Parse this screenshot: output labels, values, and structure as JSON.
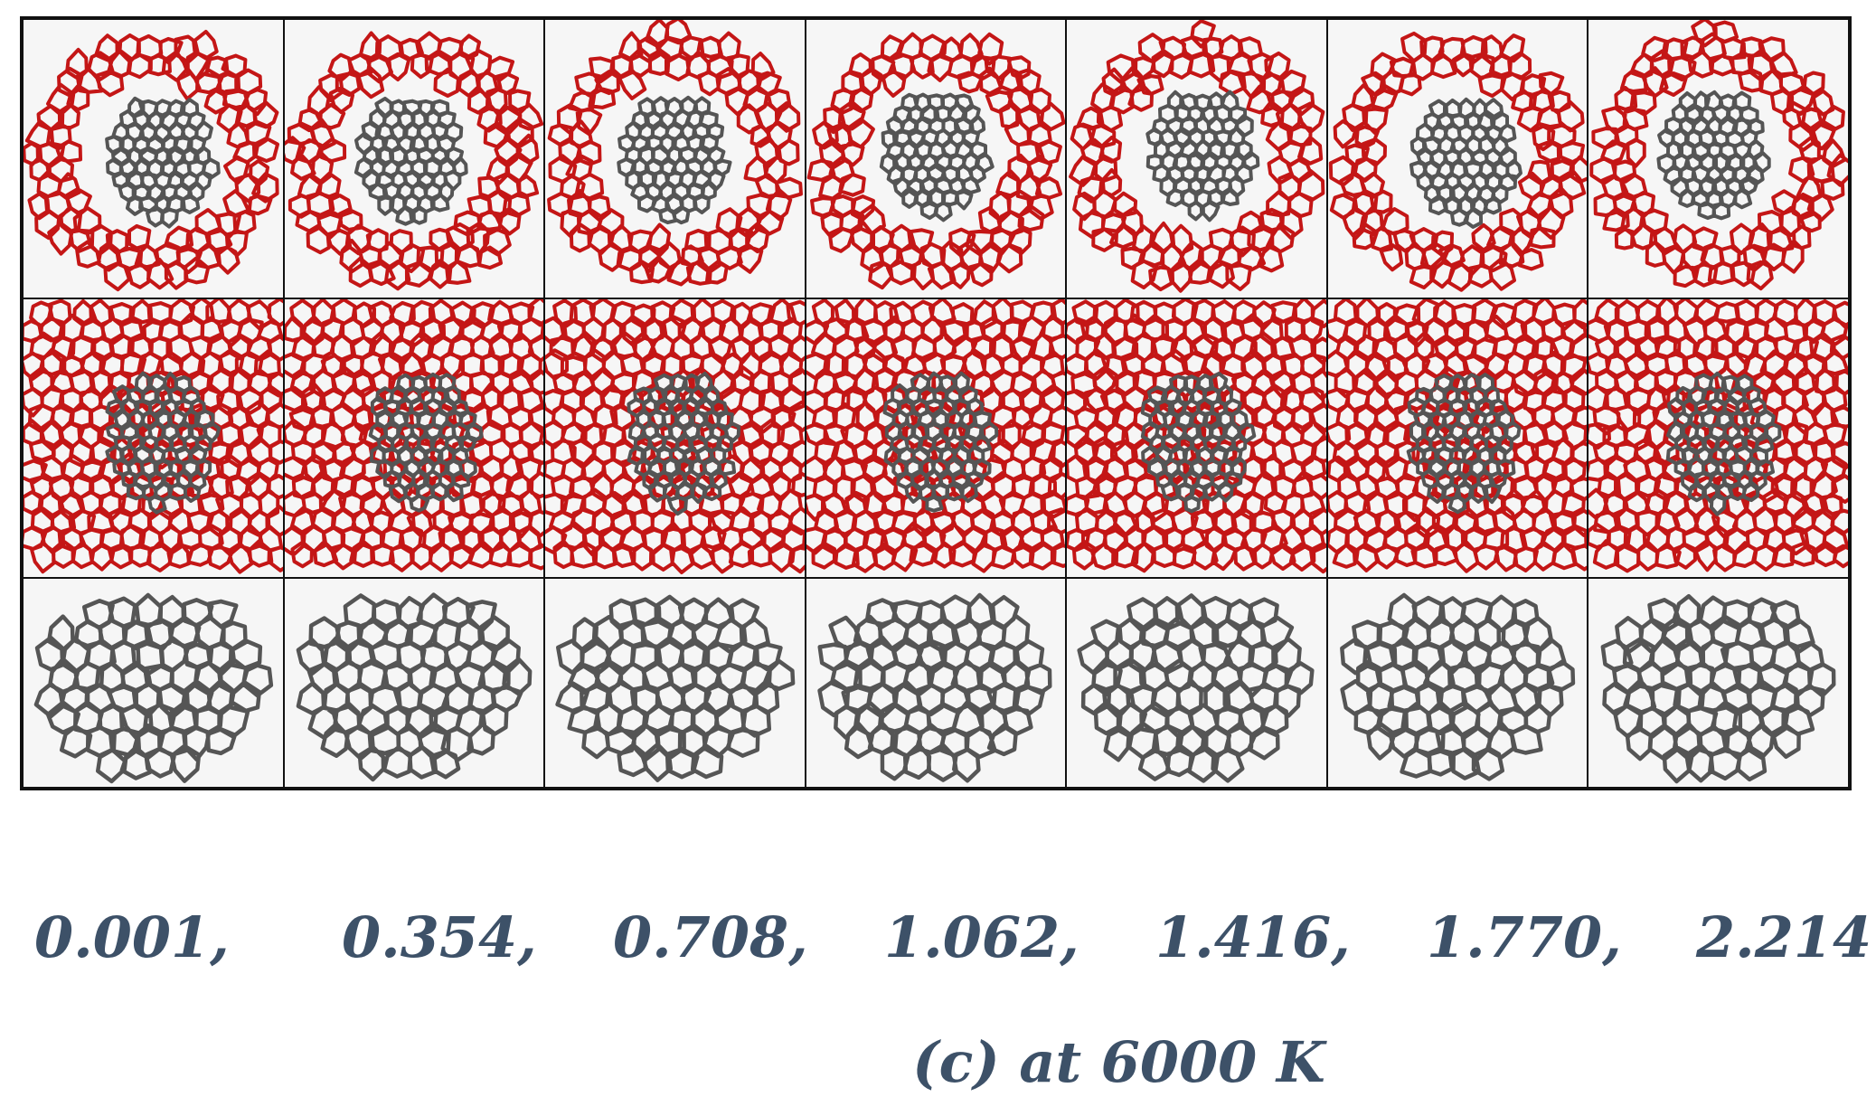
{
  "figure": {
    "columns": 7,
    "rows": [
      {
        "view": "axial",
        "outer_color": "#c41616",
        "inner_color": "#555555"
      },
      {
        "view": "side",
        "outer_color": "#c41616",
        "inner_color": "#555555"
      },
      {
        "view": "inner-only",
        "outer_color": "",
        "inner_color": "#555555"
      }
    ]
  },
  "time_labels": [
    "0.001,",
    "0.354,",
    "0.708,",
    "1.062,",
    "1.416,",
    "1.770,",
    "2.214"
  ],
  "caption": "(c) at 6000 K",
  "colors": {
    "label_text": "#3d5168",
    "border": "#111111",
    "cell_bg": "#f6f6f6"
  }
}
